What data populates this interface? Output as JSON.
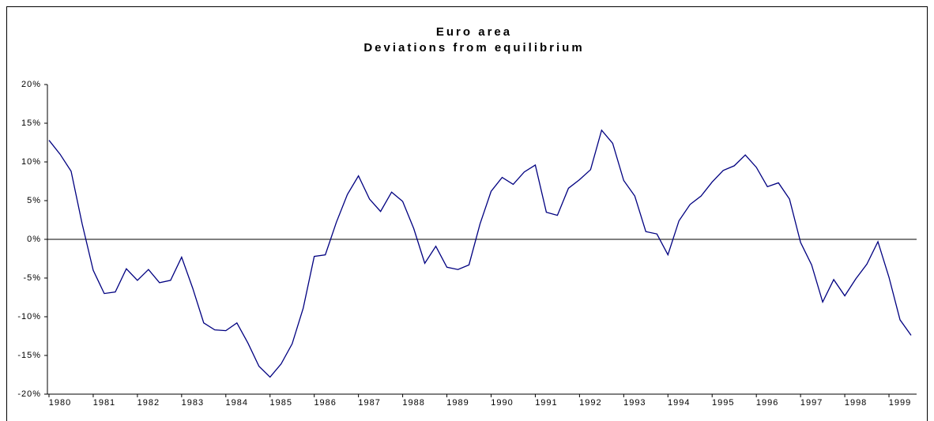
{
  "chart_data": {
    "type": "line",
    "title": "Euro area",
    "subtitle": "Deviations from equilibrium",
    "categories": [
      "1980",
      null,
      null,
      null,
      "1981",
      null,
      null,
      null,
      "1982",
      null,
      null,
      null,
      "1983",
      null,
      null,
      null,
      "1984",
      null,
      null,
      null,
      "1985",
      null,
      null,
      null,
      "1986",
      null,
      null,
      null,
      "1987",
      null,
      null,
      null,
      "1988",
      null,
      null,
      null,
      "1989",
      null,
      null,
      null,
      "1990",
      null,
      null,
      null,
      "1991",
      null,
      null,
      null,
      "1992",
      null,
      null,
      null,
      "1993",
      null,
      null,
      null,
      "1994",
      null,
      null,
      null,
      "1995",
      null,
      null,
      null,
      "1996",
      null,
      null,
      null,
      "1997",
      null,
      null,
      null,
      "1998",
      null,
      null,
      null,
      "1999",
      null,
      null
    ],
    "series": [
      {
        "color": "#000080",
        "values": [
          12.8,
          11,
          8.8,
          2,
          -4,
          -7,
          -6.8,
          -3.8,
          -5.3,
          -3.9,
          -5.6,
          -5.3,
          -2.3,
          -6.3,
          -10.8,
          -11.7,
          -11.8,
          -10.8,
          -13.4,
          -16.4,
          -17.8,
          -16.1,
          -13.5,
          -8.9,
          -2.2,
          -2.0,
          2.2,
          5.8,
          8.2,
          5.2,
          3.6,
          6.1,
          4.9,
          1.4,
          -3.1,
          -0.9,
          -3.6,
          -3.9,
          -3.3,
          2.0,
          6.2,
          8.0,
          7.1,
          8.7,
          9.6,
          3.5,
          3.1,
          6.6,
          7.7,
          9.0,
          14.1,
          12.4,
          7.6,
          5.6,
          1.0,
          0.7,
          -2.0,
          2.4,
          4.5,
          5.6,
          7.4,
          8.9,
          9.5,
          10.9,
          9.3,
          6.8,
          7.3,
          5.2,
          -0.4,
          -3.3,
          -8.1,
          -5.2,
          -7.3,
          -5.1,
          -3.2,
          -0.3,
          -4.9,
          -10.4,
          -12.4
        ]
      }
    ],
    "ylim": [
      -20,
      20
    ],
    "yticks": [
      {
        "value": -20,
        "label": "-20%"
      },
      {
        "value": -15,
        "label": "-15%"
      },
      {
        "value": -10,
        "label": "-10%"
      },
      {
        "value": -5,
        "label": "-5%"
      },
      {
        "value": 0,
        "label": "0%"
      },
      {
        "value": 5,
        "label": "5%"
      },
      {
        "value": 10,
        "label": "10%"
      },
      {
        "value": 15,
        "label": "15%"
      },
      {
        "value": 20,
        "label": "20%"
      }
    ],
    "grid": false
  }
}
